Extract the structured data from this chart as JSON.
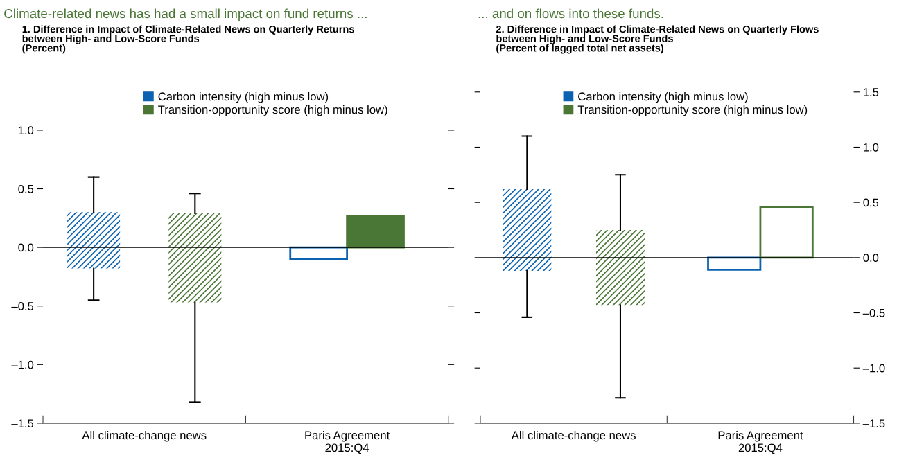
{
  "chart_data": [
    {
      "type": "bar",
      "title": "Climate-related news has had a small impact on fund returns ...",
      "subtitle": "1. Difference in Impact of Climate-Related News on Quarterly Returns\nbetween High- and Low-Score Funds\n(Percent)",
      "categories": [
        "All climate-change news",
        "Paris Agreement\n2015:Q4"
      ],
      "series": [
        {
          "name": "Carbon intensity (high minus low)",
          "color": "#0b62b0",
          "colors": [
            "#0b62b0",
            "#ffffff"
          ],
          "base": [
            -0.18,
            0
          ],
          "values": [
            0.48,
            -0.1
          ],
          "errors": [
            [
              -0.45,
              0.6
            ],
            null
          ]
        },
        {
          "name": "Transition-opportunity score (high minus low)",
          "color": "#4a7636",
          "colors": [
            "#4a7636",
            "#4a7636"
          ],
          "base": [
            -0.47,
            0
          ],
          "values": [
            0.76,
            0.27
          ],
          "errors": [
            [
              -1.32,
              0.46
            ],
            null
          ]
        }
      ],
      "ylim": [
        -1.5,
        1.0
      ],
      "yticks": [
        {
          "value": -1.5,
          "label": "–1.5"
        },
        {
          "value": -1.0,
          "label": "–1.0"
        },
        {
          "value": -0.5,
          "label": "–0.5"
        },
        {
          "value": 0,
          "label": "0.0"
        },
        {
          "value": 0.5,
          "label": "0.5"
        },
        {
          "value": 1.0,
          "label": "1.0"
        }
      ],
      "ref_lines": [
        {
          "axis": "y",
          "value": 0,
          "color": "#000000"
        }
      ],
      "legend": "top",
      "grid": false
    },
    {
      "type": "bar",
      "title": "... and on flows into these funds.",
      "subtitle": "2. Difference in Impact of Climate-Related News on Quarterly Flows\nbetween High- and Low-Score Funds\n(Percent of lagged total net assets)",
      "categories": [
        "All climate-change news",
        "Paris Agreement\n2015:Q4"
      ],
      "series": [
        {
          "name": "Carbon intensity (high minus low)",
          "color": "#0b62b0",
          "colors": [
            "#0b62b0",
            "#ffffff"
          ],
          "base": [
            -0.12,
            0
          ],
          "values": [
            0.74,
            -0.11
          ],
          "errors": [
            [
              -0.54,
              1.1
            ],
            null
          ],
          "axis": "y2"
        },
        {
          "name": "Transition-opportunity score (high minus low)",
          "color": "#4a7636",
          "colors": [
            "#4a7636",
            "#ffffff"
          ],
          "base": [
            -0.43,
            0
          ],
          "values": [
            0.68,
            0.46
          ],
          "errors": [
            [
              -1.27,
              0.75
            ],
            null
          ],
          "axis": "y2"
        }
      ],
      "y2lim": [
        -1.5,
        1.5
      ],
      "y2ticks": [
        {
          "value": -1.5,
          "label": "–1.5"
        },
        {
          "value": -1.0,
          "label": "–1.0"
        },
        {
          "value": -0.5,
          "label": "–0.5"
        },
        {
          "value": 0,
          "label": "0.0"
        },
        {
          "value": 0.5,
          "label": "0.5"
        },
        {
          "value": 1.0,
          "label": "1.0"
        },
        {
          "value": 1.5,
          "label": "1.5"
        }
      ],
      "ref_lines": [
        {
          "axis": "y2",
          "value": 0,
          "color": "#000000"
        }
      ],
      "legend": "top",
      "grid": false
    }
  ]
}
